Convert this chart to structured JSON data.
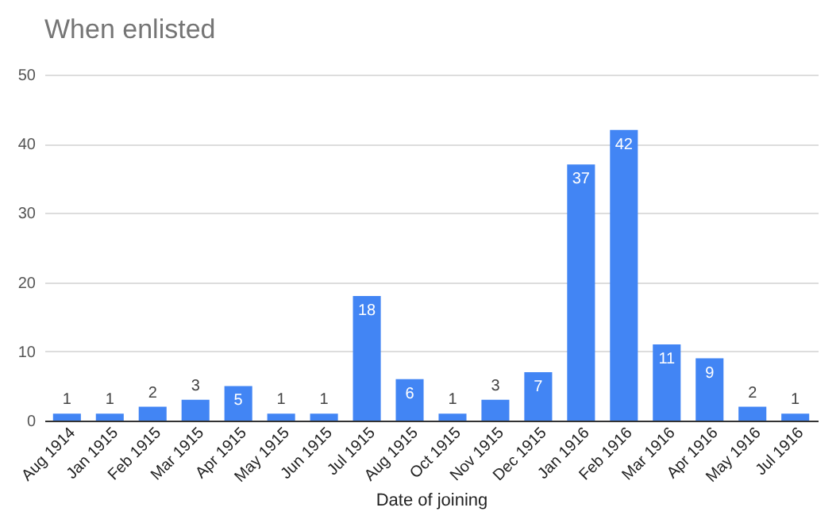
{
  "chart_data": {
    "type": "bar",
    "title": "When enlisted",
    "xlabel": "Date of joining",
    "categories": [
      "Aug 1914",
      "Jan 1915",
      "Feb 1915",
      "Mar 1915",
      "Apr 1915",
      "May 1915",
      "Jun 1915",
      "Jul 1915",
      "Aug 1915",
      "Oct 1915",
      "Nov 1915",
      "Dec 1915",
      "Jan 1916",
      "Feb 1916",
      "Mar 1916",
      "Apr 1916",
      "May 1916",
      "Jul 1916"
    ],
    "values": [
      1,
      1,
      2,
      3,
      5,
      1,
      1,
      18,
      6,
      1,
      3,
      7,
      37,
      42,
      11,
      9,
      2,
      1
    ],
    "color": "#4285f4",
    "ylim": [
      0,
      50
    ],
    "yticks": [
      0,
      10,
      20,
      30,
      40,
      50
    ],
    "grid": "y",
    "data_labels": true
  }
}
